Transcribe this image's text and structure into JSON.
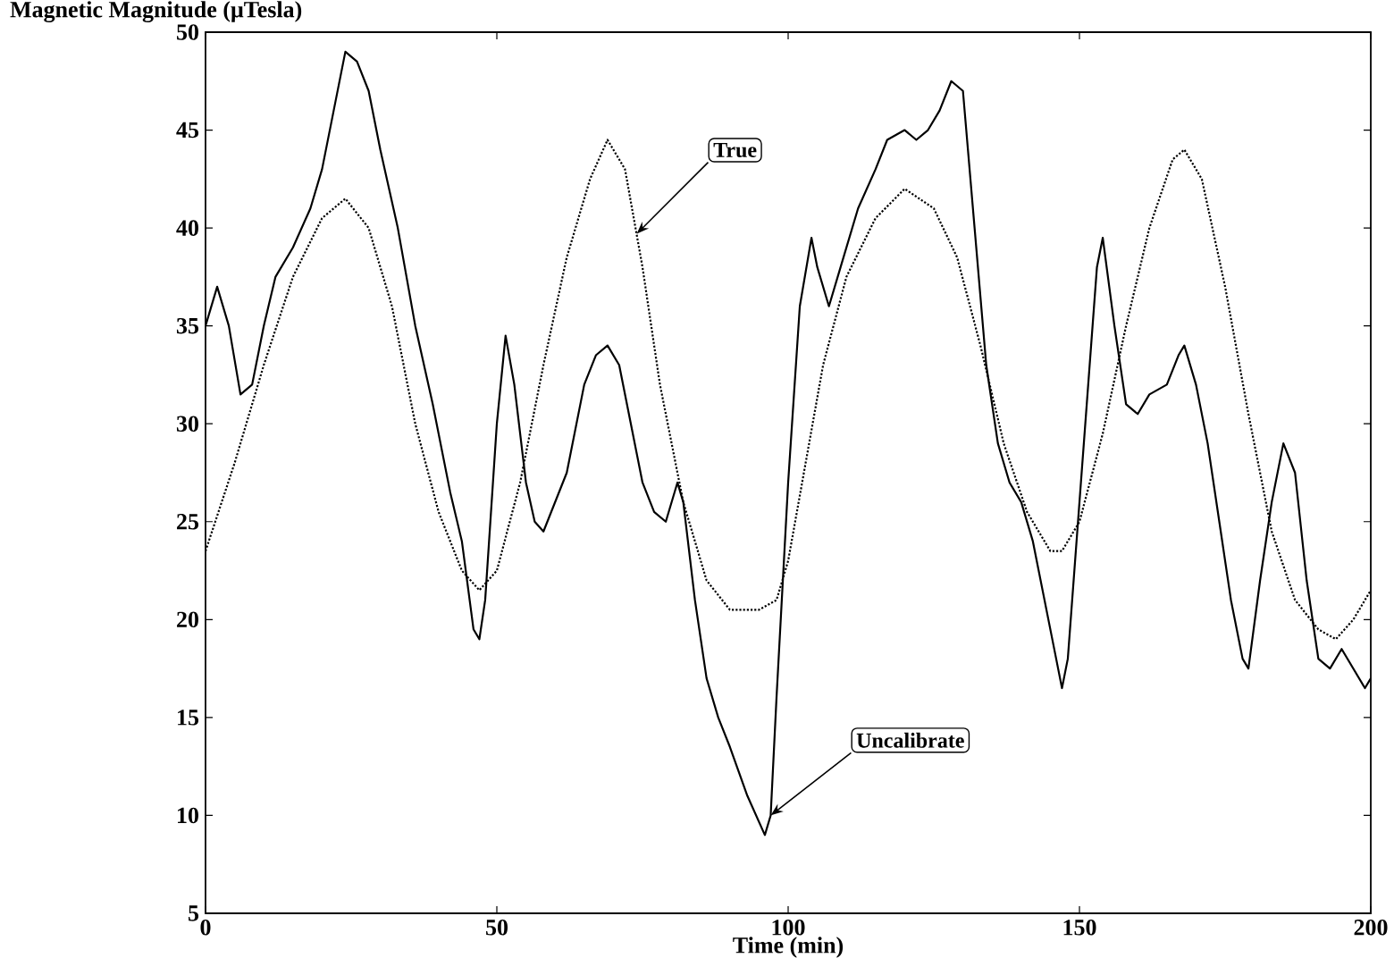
{
  "chart_data": {
    "type": "line",
    "ylabel": "Magnetic Magnitude (μTesla)",
    "xlabel": "Time (min)",
    "xlim": [
      0,
      200
    ],
    "ylim": [
      5,
      50
    ],
    "xticks": [
      0,
      50,
      100,
      150,
      200
    ],
    "yticks": [
      5,
      10,
      15,
      20,
      25,
      30,
      35,
      40,
      45,
      50
    ],
    "grid": false,
    "marker": "none",
    "annotations": [
      {
        "text": "True",
        "x": 74,
        "y": 39.7
      },
      {
        "text": "Uncalibrate",
        "x": 97,
        "y": 10
      }
    ],
    "series": [
      {
        "color": "#000000",
        "line_style": "solid",
        "x": [
          0,
          2,
          4,
          6,
          8,
          10,
          12,
          15,
          18,
          20,
          22,
          24,
          26,
          28,
          30,
          33,
          36,
          39,
          42,
          44,
          46,
          47,
          48,
          50,
          51.5,
          53,
          55,
          56.5,
          58,
          60,
          62,
          65,
          67,
          69,
          71,
          73,
          75,
          77,
          79,
          81,
          82,
          84,
          86,
          88,
          90,
          93,
          96,
          97,
          98,
          100,
          102,
          104,
          105,
          107,
          109,
          112,
          115,
          117,
          120,
          122,
          124,
          126,
          128,
          130,
          132,
          134,
          136,
          138,
          140,
          142,
          144,
          146,
          147,
          148,
          150,
          152,
          153,
          154,
          156,
          158,
          160,
          162,
          165,
          167,
          168,
          170,
          172,
          174,
          176,
          178,
          179,
          181,
          183,
          185,
          187,
          189,
          191,
          193,
          195,
          197,
          199,
          200
        ],
        "values": [
          35,
          37,
          35,
          31.5,
          32,
          35,
          37.5,
          39,
          41,
          43,
          46,
          49,
          48.5,
          47,
          44,
          40,
          35,
          31,
          26.5,
          24,
          19.5,
          19,
          21,
          30,
          34.5,
          32,
          27,
          25,
          24.5,
          26,
          27.5,
          32,
          33.5,
          34,
          33,
          30,
          27,
          25.5,
          25,
          27,
          26,
          21,
          17,
          15,
          13.5,
          11,
          9,
          10,
          16,
          27,
          36,
          39.5,
          38,
          36,
          38,
          41,
          43,
          44.5,
          45,
          44.5,
          45,
          46,
          47.5,
          47,
          40,
          33,
          29,
          27,
          26,
          24,
          21,
          18,
          16.5,
          18,
          26,
          34,
          38,
          39.5,
          35,
          31,
          30.5,
          31.5,
          32,
          33.5,
          34,
          32,
          29,
          25,
          21,
          18,
          17.5,
          22,
          26,
          29,
          27.5,
          22,
          18,
          17.5,
          18.5,
          17.5,
          16.5,
          17
        ]
      },
      {
        "color": "#000000",
        "line_style": "dotted",
        "x": [
          0,
          5,
          10,
          15,
          20,
          24,
          28,
          32,
          36,
          40,
          44,
          47,
          50,
          54,
          58,
          62,
          66,
          69,
          72,
          75,
          78,
          82,
          86,
          90,
          95,
          98,
          100,
          103,
          106,
          110,
          115,
          120,
          125,
          129,
          133,
          137,
          141,
          145,
          147,
          150,
          154,
          158,
          162,
          166,
          168,
          171,
          175,
          179,
          183,
          187,
          191,
          194,
          197,
          200
        ],
        "values": [
          23.5,
          28,
          33,
          37.5,
          40.5,
          41.5,
          40,
          36,
          30,
          25.5,
          22.5,
          21.5,
          22.5,
          27,
          33,
          38.5,
          42.5,
          44.5,
          43,
          38,
          32,
          26,
          22,
          20.5,
          20.5,
          21,
          23,
          28,
          33,
          37.5,
          40.5,
          42,
          41,
          38.5,
          34,
          29,
          25.5,
          23.5,
          23.5,
          25,
          29.5,
          35,
          40,
          43.5,
          44,
          42.5,
          37,
          30.5,
          24.5,
          21,
          19.5,
          19,
          20,
          21.5
        ]
      }
    ]
  }
}
